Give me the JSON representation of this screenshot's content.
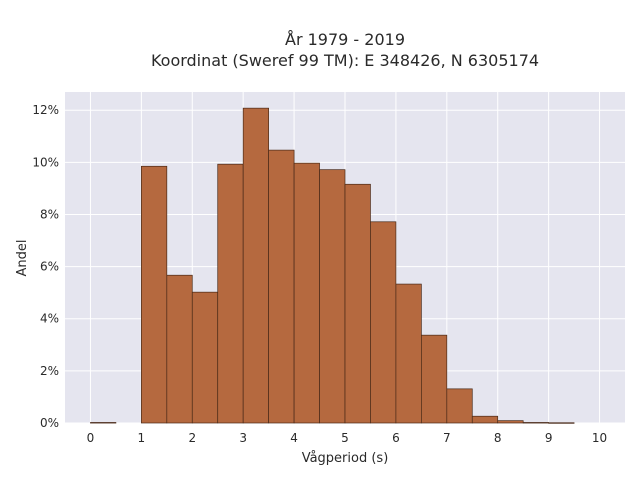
{
  "chart_data": {
    "type": "bar",
    "title_lines": [
      "År 1979 - 2019",
      "Koordinat (Sweref 99 TM): E 348426, N 6305174"
    ],
    "xlabel": "Vågperiod (s)",
    "ylabel": "Andel",
    "xlim": [
      -0.5,
      10.5
    ],
    "ylim": [
      0,
      0.127
    ],
    "x_ticks": [
      0,
      1,
      2,
      3,
      4,
      5,
      6,
      7,
      8,
      9,
      10
    ],
    "y_ticks": [
      0,
      0.02,
      0.04,
      0.06,
      0.08,
      0.1,
      0.12
    ],
    "y_tick_labels": [
      "0%",
      "2%",
      "4%",
      "6%",
      "8%",
      "10%",
      "12%"
    ],
    "bin_width": 0.5,
    "bins": [
      {
        "x0": 0.0,
        "x1": 0.5,
        "value": 0.0002
      },
      {
        "x0": 1.0,
        "x1": 1.5,
        "value": 0.0985
      },
      {
        "x0": 1.5,
        "x1": 2.0,
        "value": 0.0567
      },
      {
        "x0": 2.0,
        "x1": 2.5,
        "value": 0.0502
      },
      {
        "x0": 2.5,
        "x1": 3.0,
        "value": 0.0993
      },
      {
        "x0": 3.0,
        "x1": 3.5,
        "value": 0.1208
      },
      {
        "x0": 3.5,
        "x1": 4.0,
        "value": 0.1047
      },
      {
        "x0": 4.0,
        "x1": 4.5,
        "value": 0.0997
      },
      {
        "x0": 4.5,
        "x1": 5.0,
        "value": 0.0972
      },
      {
        "x0": 5.0,
        "x1": 5.5,
        "value": 0.0916
      },
      {
        "x0": 5.5,
        "x1": 6.0,
        "value": 0.0772
      },
      {
        "x0": 6.0,
        "x1": 6.5,
        "value": 0.0533
      },
      {
        "x0": 6.5,
        "x1": 7.0,
        "value": 0.0337
      },
      {
        "x0": 7.0,
        "x1": 7.5,
        "value": 0.0131
      },
      {
        "x0": 7.5,
        "x1": 8.0,
        "value": 0.0026
      },
      {
        "x0": 8.0,
        "x1": 8.5,
        "value": 0.0009
      },
      {
        "x0": 8.5,
        "x1": 9.0,
        "value": 0.0002
      },
      {
        "x0": 9.0,
        "x1": 9.5,
        "value": 0.0001
      }
    ],
    "grid": true,
    "legend": "none",
    "colors": {
      "bar_fill": "#b5693f",
      "bar_edge": "#4a2a18",
      "plot_background": "#e5e5ef",
      "grid": "#ffffff"
    }
  }
}
